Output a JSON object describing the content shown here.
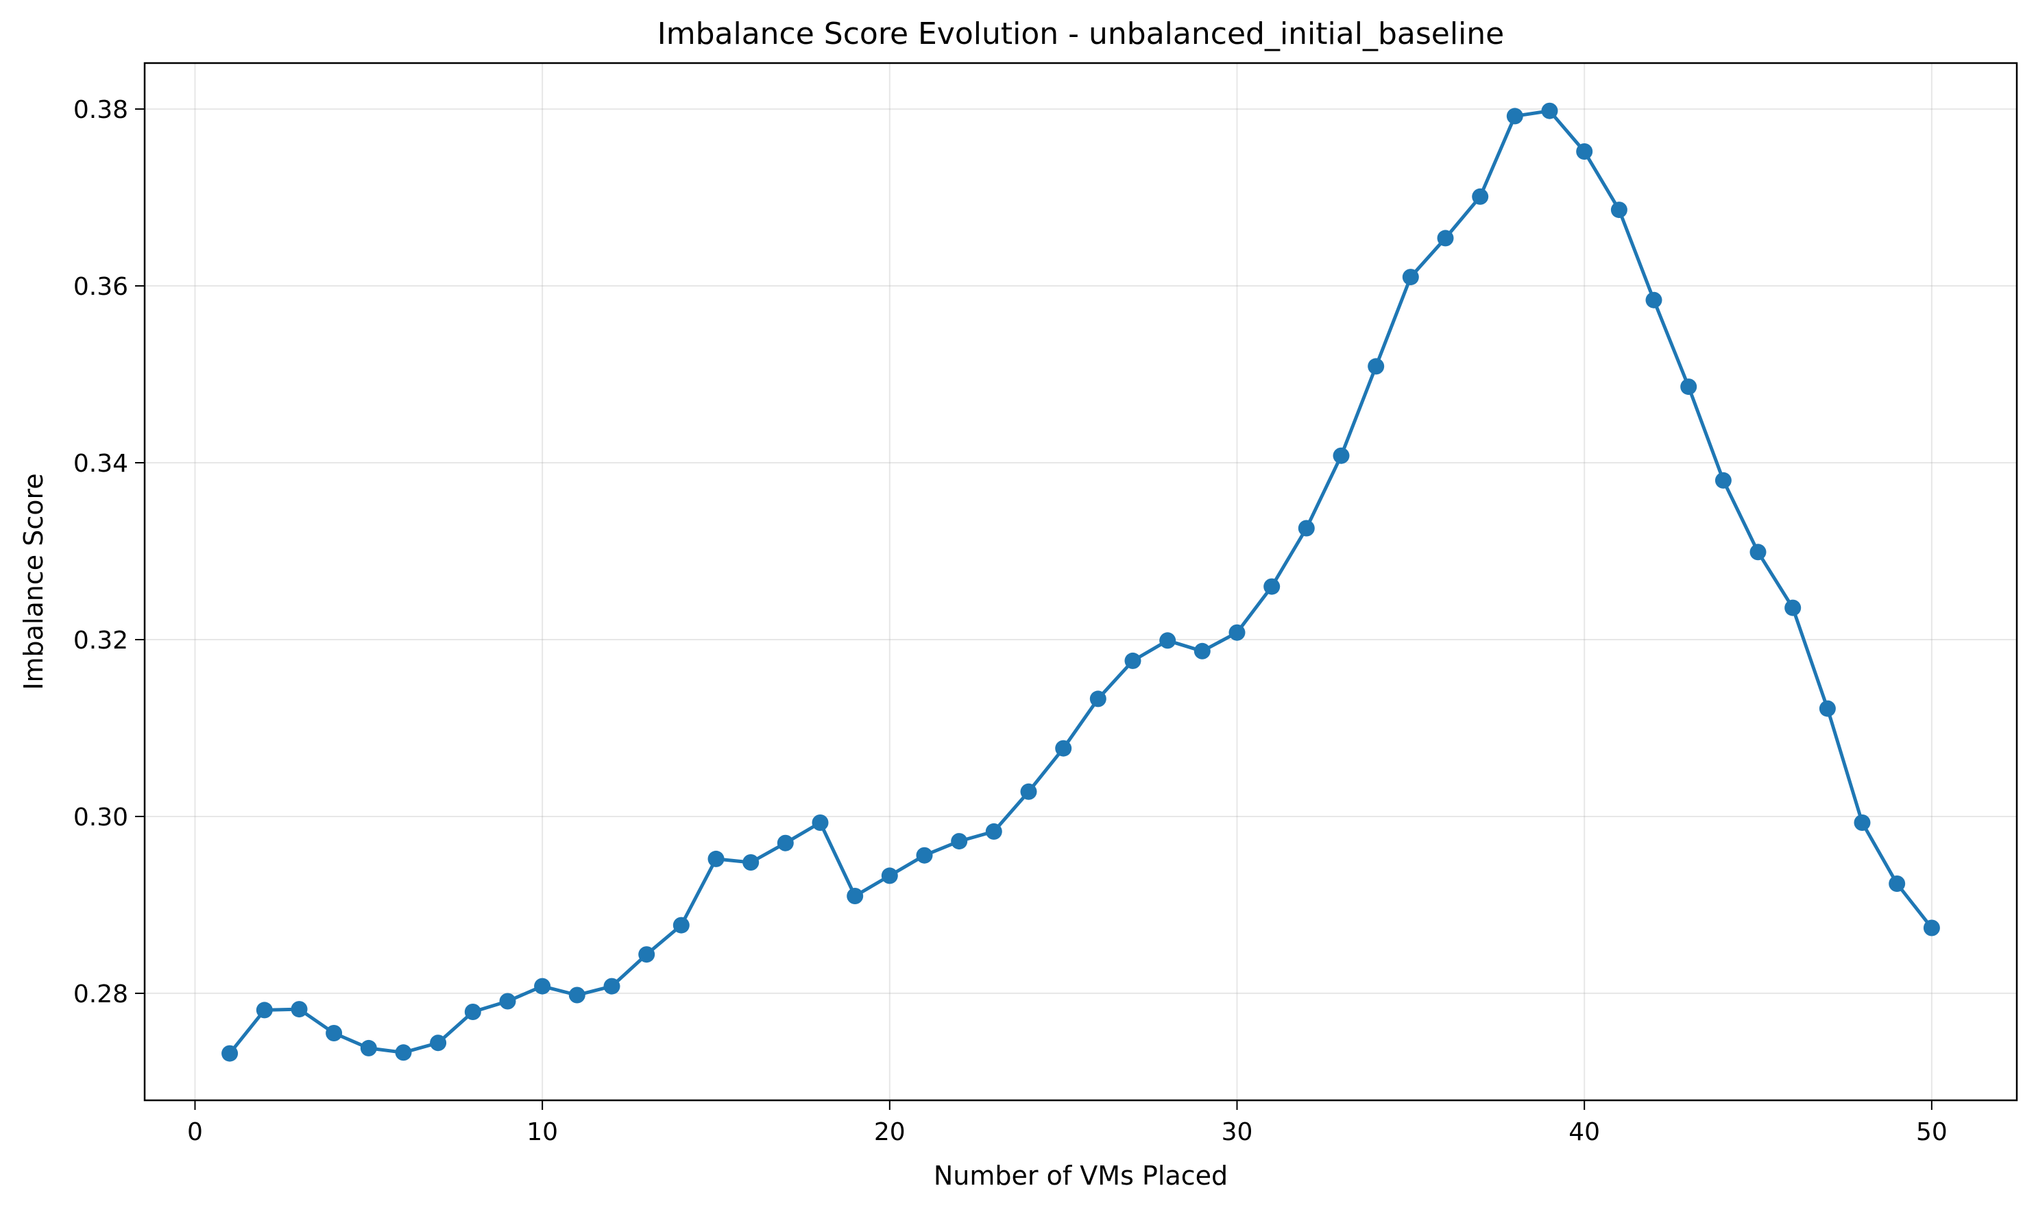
{
  "chart_data": {
    "type": "line",
    "title": "Imbalance Score Evolution - unbalanced_initial_baseline",
    "xlabel": "Number of VMs Placed",
    "ylabel": "Imbalance Score",
    "xlim": [
      -1.45,
      52.45
    ],
    "ylim": [
      0.2679,
      0.3852
    ],
    "xticks": [
      0,
      10,
      20,
      30,
      40,
      50
    ],
    "xtick_labels": [
      "0",
      "10",
      "20",
      "30",
      "40",
      "50"
    ],
    "yticks": [
      0.28,
      0.3,
      0.32,
      0.34,
      0.36,
      0.38
    ],
    "ytick_labels": [
      "0.28",
      "0.30",
      "0.32",
      "0.34",
      "0.36",
      "0.38"
    ],
    "grid": true,
    "marker": "circle",
    "color": "#1f77b4",
    "series": [
      {
        "x": [
          1,
          2,
          3,
          4,
          5,
          6,
          7,
          8,
          9,
          10,
          11,
          12,
          13,
          14,
          15,
          16,
          17,
          18,
          19,
          20,
          21,
          22,
          23,
          24,
          25,
          26,
          27,
          28,
          29,
          30,
          31,
          32,
          33,
          34,
          35,
          36,
          37,
          38,
          39,
          40,
          41,
          42,
          43,
          44,
          45,
          46,
          47,
          48,
          49,
          50
        ],
        "values": [
          0.2732,
          0.2781,
          0.2782,
          0.2755,
          0.2738,
          0.2733,
          0.2744,
          0.2779,
          0.2791,
          0.2808,
          0.2798,
          0.2808,
          0.2844,
          0.2877,
          0.2952,
          0.2948,
          0.297,
          0.2993,
          0.291,
          0.2933,
          0.2956,
          0.2972,
          0.2983,
          0.3028,
          0.3077,
          0.3133,
          0.3176,
          0.3199,
          0.3187,
          0.3208,
          0.326,
          0.3326,
          0.3408,
          0.3509,
          0.361,
          0.3654,
          0.3701,
          0.3792,
          0.3798,
          0.3752,
          0.3686,
          0.3584,
          0.3486,
          0.338,
          0.3299,
          0.3236,
          0.3122,
          0.2993,
          0.2924,
          0.2874
        ]
      }
    ]
  }
}
